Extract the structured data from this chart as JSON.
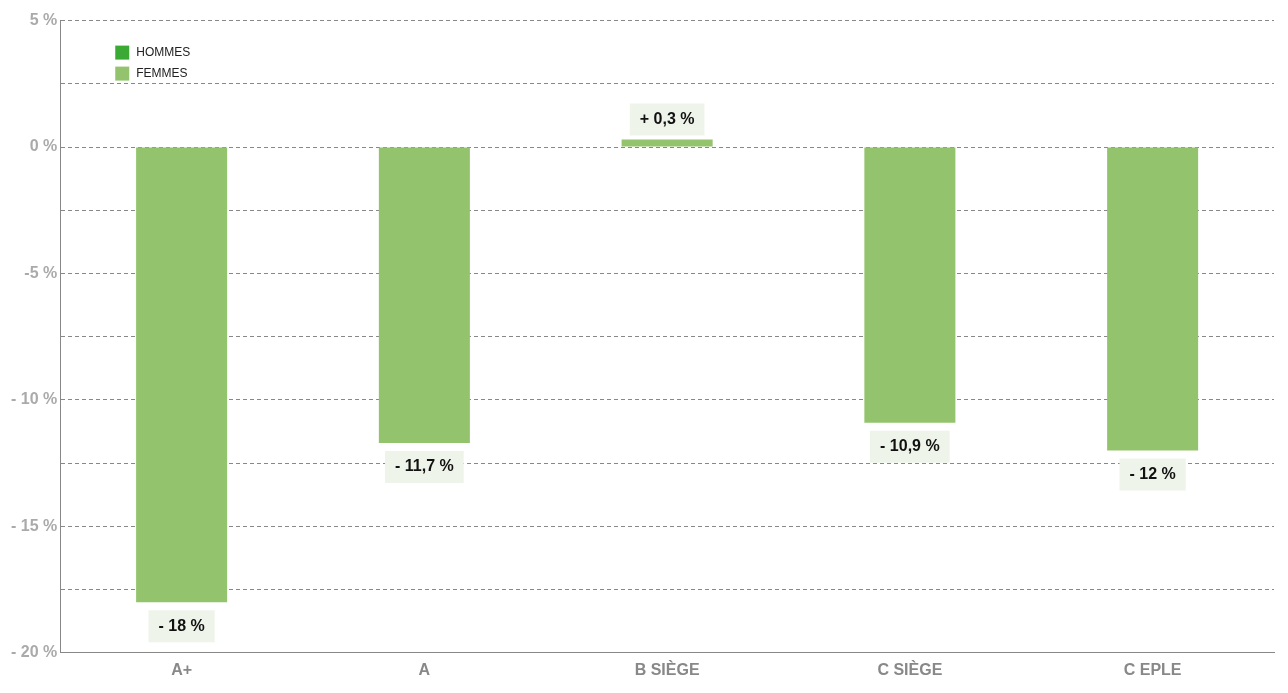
{
  "chart_data": {
    "type": "bar",
    "categories": [
      "A+",
      "A",
      "B SIÈGE",
      "C SIÈGE",
      "C EPLE"
    ],
    "series": [
      {
        "name": "HOMMES",
        "color": "#3aaa35",
        "values": [
          null,
          null,
          null,
          null,
          null
        ]
      },
      {
        "name": "FEMMES",
        "color": "#93c46d",
        "values": [
          -18,
          -11.7,
          0.3,
          -10.9,
          -12
        ],
        "value_labels": [
          "- 18 %",
          "- 11,7 %",
          "+ 0,3 %",
          "- 10,9 %",
          "- 12 %"
        ]
      }
    ],
    "ylim": [
      -20,
      5
    ],
    "yticks": [
      {
        "value": 5,
        "label": "5 %"
      },
      {
        "value": 2.5,
        "label": null
      },
      {
        "value": 0,
        "label": "0 %"
      },
      {
        "value": -2.5,
        "label": null
      },
      {
        "value": -5,
        "label": "-5 %"
      },
      {
        "value": -7.5,
        "label": null
      },
      {
        "value": -10,
        "label": "- 10 %"
      },
      {
        "value": -12.5,
        "label": null
      },
      {
        "value": -15,
        "label": "- 15 %"
      },
      {
        "value": -17.5,
        "label": null
      },
      {
        "value": -20,
        "label": "- 20 %"
      }
    ],
    "grid": "y",
    "legend": "top left"
  }
}
